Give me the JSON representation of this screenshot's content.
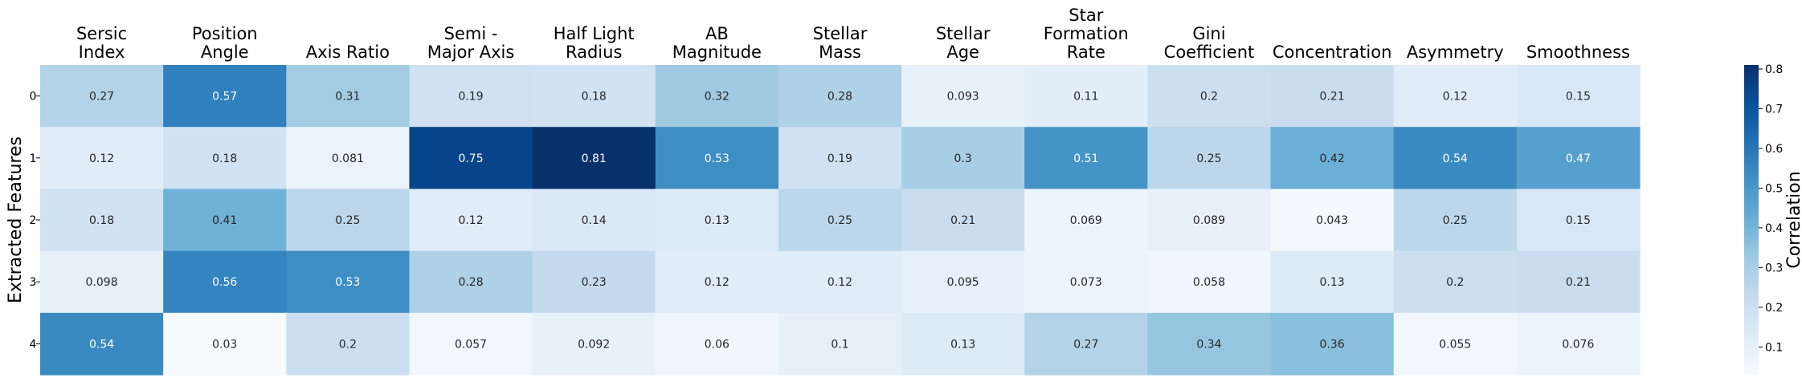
{
  "chart_data": {
    "type": "heatmap",
    "title": "",
    "columns": [
      [
        "Sersic",
        "Index"
      ],
      [
        "Position",
        "Angle"
      ],
      [
        "Axis Ratio"
      ],
      [
        "Semi -",
        "Major Axis"
      ],
      [
        "Half Light",
        "Radius"
      ],
      [
        "AB",
        "Magnitude"
      ],
      [
        "Stellar",
        "Mass"
      ],
      [
        "Stellar",
        "Age"
      ],
      [
        "Star",
        "Formation",
        "Rate"
      ],
      [
        "Gini",
        "Coefficient"
      ],
      [
        "Concentration"
      ],
      [
        "Asymmetry"
      ],
      [
        "Smoothness"
      ]
    ],
    "rows": [
      "0",
      "1",
      "2",
      "3",
      "4"
    ],
    "ylabel": "Extracted Features",
    "values": [
      [
        0.27,
        0.57,
        0.31,
        0.19,
        0.18,
        0.32,
        0.28,
        0.093,
        0.11,
        0.2,
        0.21,
        0.12,
        0.15
      ],
      [
        0.12,
        0.18,
        0.081,
        0.75,
        0.81,
        0.53,
        0.19,
        0.3,
        0.51,
        0.25,
        0.42,
        0.54,
        0.47
      ],
      [
        0.18,
        0.41,
        0.25,
        0.12,
        0.14,
        0.13,
        0.25,
        0.21,
        0.069,
        0.089,
        0.043,
        0.25,
        0.15
      ],
      [
        0.098,
        0.56,
        0.53,
        0.28,
        0.23,
        0.12,
        0.12,
        0.095,
        0.073,
        0.058,
        0.13,
        0.2,
        0.21
      ],
      [
        0.54,
        0.03,
        0.2,
        0.057,
        0.092,
        0.06,
        0.1,
        0.13,
        0.27,
        0.34,
        0.36,
        0.055,
        0.076
      ]
    ],
    "colorbar": {
      "label": "Correlation",
      "min": 0.03,
      "max": 0.81,
      "ticks": [
        "0.1",
        "0.2",
        "0.3",
        "0.4",
        "0.5",
        "0.6",
        "0.7",
        "0.8"
      ],
      "colormap": "Blues"
    }
  }
}
